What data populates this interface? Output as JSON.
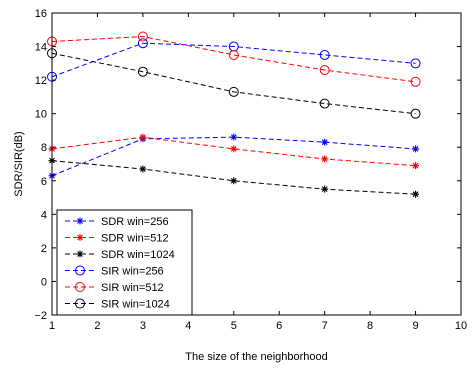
{
  "chart_data": {
    "type": "line",
    "title": "",
    "xlabel": "The size of the neighborhood",
    "ylabel": "SDR/SIR(dB)",
    "xlim": [
      1,
      10
    ],
    "ylim": [
      -2,
      16
    ],
    "xticks": [
      "1",
      "2",
      "3",
      "4",
      "5",
      "6",
      "7",
      "8",
      "9",
      "10"
    ],
    "yticks": [
      "−2",
      "0",
      "2",
      "4",
      "6",
      "8",
      "10",
      "12",
      "14",
      "16"
    ],
    "grid": false,
    "legend_position": "bottom-left",
    "series": [
      {
        "name": "SDR win=256",
        "color": "#0000ff",
        "marker": "star",
        "line": "dashed",
        "x": [
          1,
          3,
          5,
          7,
          9
        ],
        "y": [
          6.3,
          8.5,
          8.6,
          8.3,
          7.9
        ]
      },
      {
        "name": "SDR win=512",
        "color": "#ff0000",
        "marker": "star",
        "line": "dashed",
        "x": [
          1,
          3,
          5,
          7,
          9
        ],
        "y": [
          7.9,
          8.6,
          7.9,
          7.3,
          6.9
        ]
      },
      {
        "name": "SDR win=1024",
        "color": "#000000",
        "marker": "star",
        "line": "dashed",
        "x": [
          1,
          3,
          5,
          7,
          9
        ],
        "y": [
          7.2,
          6.7,
          6.0,
          5.5,
          5.2
        ]
      },
      {
        "name": "SIR win=256",
        "color": "#0000ff",
        "marker": "circle",
        "line": "dashed",
        "x": [
          1,
          3,
          5,
          7,
          9
        ],
        "y": [
          12.2,
          14.2,
          14.0,
          13.5,
          13.0
        ]
      },
      {
        "name": "SIR win=512",
        "color": "#ff0000",
        "marker": "circle",
        "line": "dashed",
        "x": [
          1,
          3,
          5,
          7,
          9
        ],
        "y": [
          14.3,
          14.6,
          13.5,
          12.6,
          11.9
        ]
      },
      {
        "name": "SIR win=1024",
        "color": "#000000",
        "marker": "circle",
        "line": "dashed",
        "x": [
          1,
          3,
          5,
          7,
          9
        ],
        "y": [
          13.6,
          12.5,
          11.3,
          10.6,
          10.0
        ]
      }
    ]
  }
}
